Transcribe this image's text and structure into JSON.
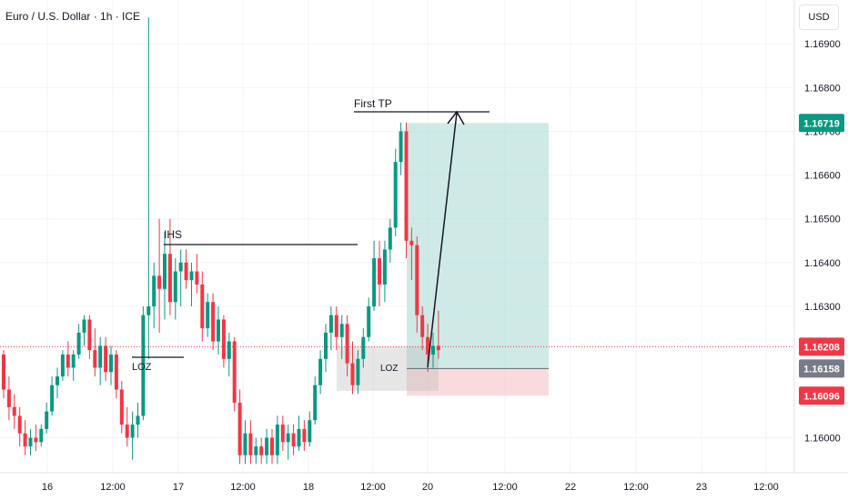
{
  "header": {
    "title": "Euro / U.S. Dollar · 1h · ICE",
    "currency_button": "USD"
  },
  "chart_data": {
    "type": "candlestick",
    "title": "Euro / U.S. Dollar · 1h · ICE",
    "price_scale": {
      "range": [
        1.1592,
        1.17
      ],
      "ticks": [
        "1.16000",
        "1.16300",
        "1.16400",
        "1.16500",
        "1.16600",
        "1.16700",
        "1.16800",
        "1.16900"
      ]
    },
    "time_labels": [
      "16",
      "12:00",
      "17",
      "12:00",
      "18",
      "12:00",
      "20",
      "12:00",
      "22",
      "12:00",
      "23",
      "12:00"
    ],
    "price_badges": [
      {
        "value": "1.16719",
        "color": "#089981"
      },
      {
        "value": "1.16208",
        "color": "#f23645"
      },
      {
        "value": "1.16158",
        "color": "#787b86"
      },
      {
        "value": "1.16096",
        "color": "#f23645"
      }
    ],
    "annotations": {
      "first_tp": "First TP",
      "ihs": "IHS",
      "loz_left": "LOZ",
      "loz_right": "LOZ"
    },
    "position": {
      "entry": 1.16158,
      "target": 1.16719,
      "stop": 1.16096,
      "current": 1.16208
    },
    "candles": [
      [
        1.1619,
        1.162,
        1.1609,
        1.1611
      ],
      [
        1.1611,
        1.1614,
        1.1604,
        1.1607
      ],
      [
        1.1607,
        1.161,
        1.1602,
        1.1605
      ],
      [
        1.1605,
        1.1607,
        1.1598,
        1.1601
      ],
      [
        1.1601,
        1.1604,
        1.1596,
        1.1598
      ],
      [
        1.1598,
        1.1602,
        1.1596,
        1.16
      ],
      [
        1.16,
        1.1603,
        1.1597,
        1.1599
      ],
      [
        1.1599,
        1.1603,
        1.1598,
        1.1602
      ],
      [
        1.1602,
        1.1608,
        1.1601,
        1.1606
      ],
      [
        1.1606,
        1.1614,
        1.1605,
        1.1612
      ],
      [
        1.1612,
        1.1616,
        1.1609,
        1.1614
      ],
      [
        1.1614,
        1.162,
        1.1613,
        1.1619
      ],
      [
        1.1619,
        1.1622,
        1.1614,
        1.1616
      ],
      [
        1.1616,
        1.162,
        1.1613,
        1.1619
      ],
      [
        1.1619,
        1.1626,
        1.1618,
        1.1624
      ],
      [
        1.1624,
        1.1628,
        1.1621,
        1.1627
      ],
      [
        1.1627,
        1.1628,
        1.1618,
        1.162
      ],
      [
        1.162,
        1.1625,
        1.1614,
        1.1616
      ],
      [
        1.1616,
        1.1623,
        1.1612,
        1.1621
      ],
      [
        1.1621,
        1.1623,
        1.1613,
        1.1615
      ],
      [
        1.1615,
        1.1621,
        1.1612,
        1.1619
      ],
      [
        1.1619,
        1.162,
        1.1609,
        1.1611
      ],
      [
        1.1611,
        1.1613,
        1.1601,
        1.1603
      ],
      [
        1.1603,
        1.1607,
        1.1598,
        1.16
      ],
      [
        1.16,
        1.1606,
        1.1595,
        1.1603
      ],
      [
        1.1603,
        1.1608,
        1.16,
        1.1605
      ],
      [
        1.1605,
        1.163,
        1.1604,
        1.1628
      ],
      [
        1.1628,
        1.1696,
        1.1618,
        1.163
      ],
      [
        1.163,
        1.164,
        1.1625,
        1.1637
      ],
      [
        1.1637,
        1.165,
        1.1624,
        1.1634
      ],
      [
        1.1634,
        1.1647,
        1.1627,
        1.1642
      ],
      [
        1.1642,
        1.165,
        1.1628,
        1.1631
      ],
      [
        1.1631,
        1.1641,
        1.1627,
        1.1638
      ],
      [
        1.1638,
        1.1643,
        1.163,
        1.164
      ],
      [
        1.164,
        1.1643,
        1.1634,
        1.1636
      ],
      [
        1.1636,
        1.164,
        1.163,
        1.1638
      ],
      [
        1.1638,
        1.1642,
        1.1633,
        1.1635
      ],
      [
        1.1635,
        1.1638,
        1.1622,
        1.1625
      ],
      [
        1.1625,
        1.1633,
        1.1623,
        1.1631
      ],
      [
        1.1631,
        1.1633,
        1.162,
        1.1622
      ],
      [
        1.1622,
        1.163,
        1.1619,
        1.1627
      ],
      [
        1.1627,
        1.1628,
        1.1616,
        1.1618
      ],
      [
        1.1618,
        1.1624,
        1.1614,
        1.1622
      ],
      [
        1.1622,
        1.1623,
        1.1606,
        1.1608
      ],
      [
        1.1608,
        1.1611,
        1.1594,
        1.1596
      ],
      [
        1.1596,
        1.1604,
        1.1594,
        1.1601
      ],
      [
        1.1601,
        1.1604,
        1.1594,
        1.1596
      ],
      [
        1.1596,
        1.16,
        1.1594,
        1.1598
      ],
      [
        1.1598,
        1.16,
        1.1594,
        1.1596
      ],
      [
        1.1596,
        1.1602,
        1.1594,
        1.16
      ],
      [
        1.16,
        1.1602,
        1.1594,
        1.1596
      ],
      [
        1.1596,
        1.1605,
        1.1594,
        1.1603
      ],
      [
        1.1603,
        1.1605,
        1.1597,
        1.1599
      ],
      [
        1.1599,
        1.1603,
        1.1595,
        1.1601
      ],
      [
        1.1601,
        1.1603,
        1.1596,
        1.1598
      ],
      [
        1.1598,
        1.1605,
        1.1597,
        1.1602
      ],
      [
        1.1602,
        1.1604,
        1.1597,
        1.1599
      ],
      [
        1.1599,
        1.1606,
        1.1598,
        1.1604
      ],
      [
        1.1604,
        1.1614,
        1.1603,
        1.1612
      ],
      [
        1.1612,
        1.162,
        1.161,
        1.1618
      ],
      [
        1.1618,
        1.1626,
        1.1615,
        1.1624
      ],
      [
        1.1624,
        1.163,
        1.162,
        1.1628
      ],
      [
        1.1628,
        1.163,
        1.162,
        1.1623
      ],
      [
        1.1623,
        1.1628,
        1.1618,
        1.1626
      ],
      [
        1.1626,
        1.1628,
        1.1614,
        1.1617
      ],
      [
        1.1617,
        1.1622,
        1.161,
        1.1612
      ],
      [
        1.1612,
        1.162,
        1.161,
        1.1618
      ],
      [
        1.1618,
        1.1625,
        1.1616,
        1.1623
      ],
      [
        1.1623,
        1.1632,
        1.1622,
        1.163
      ],
      [
        1.163,
        1.1645,
        1.1629,
        1.1641
      ],
      [
        1.1641,
        1.1645,
        1.163,
        1.1635
      ],
      [
        1.1635,
        1.1645,
        1.1631,
        1.1643
      ],
      [
        1.1643,
        1.165,
        1.164,
        1.1648
      ],
      [
        1.1648,
        1.1666,
        1.1646,
        1.1663
      ],
      [
        1.1663,
        1.1672,
        1.166,
        1.167
      ],
      [
        1.167,
        1.1672,
        1.1641,
        1.1645
      ],
      [
        1.1645,
        1.1648,
        1.1636,
        1.1644
      ],
      [
        1.1644,
        1.1646,
        1.1624,
        1.1628
      ],
      [
        1.1628,
        1.163,
        1.162,
        1.1623
      ],
      [
        1.1623,
        1.1626,
        1.1615,
        1.1619
      ],
      [
        1.1619,
        1.1624,
        1.1616,
        1.1621
      ],
      [
        1.1621,
        1.1629,
        1.1618,
        1.162
      ]
    ]
  }
}
